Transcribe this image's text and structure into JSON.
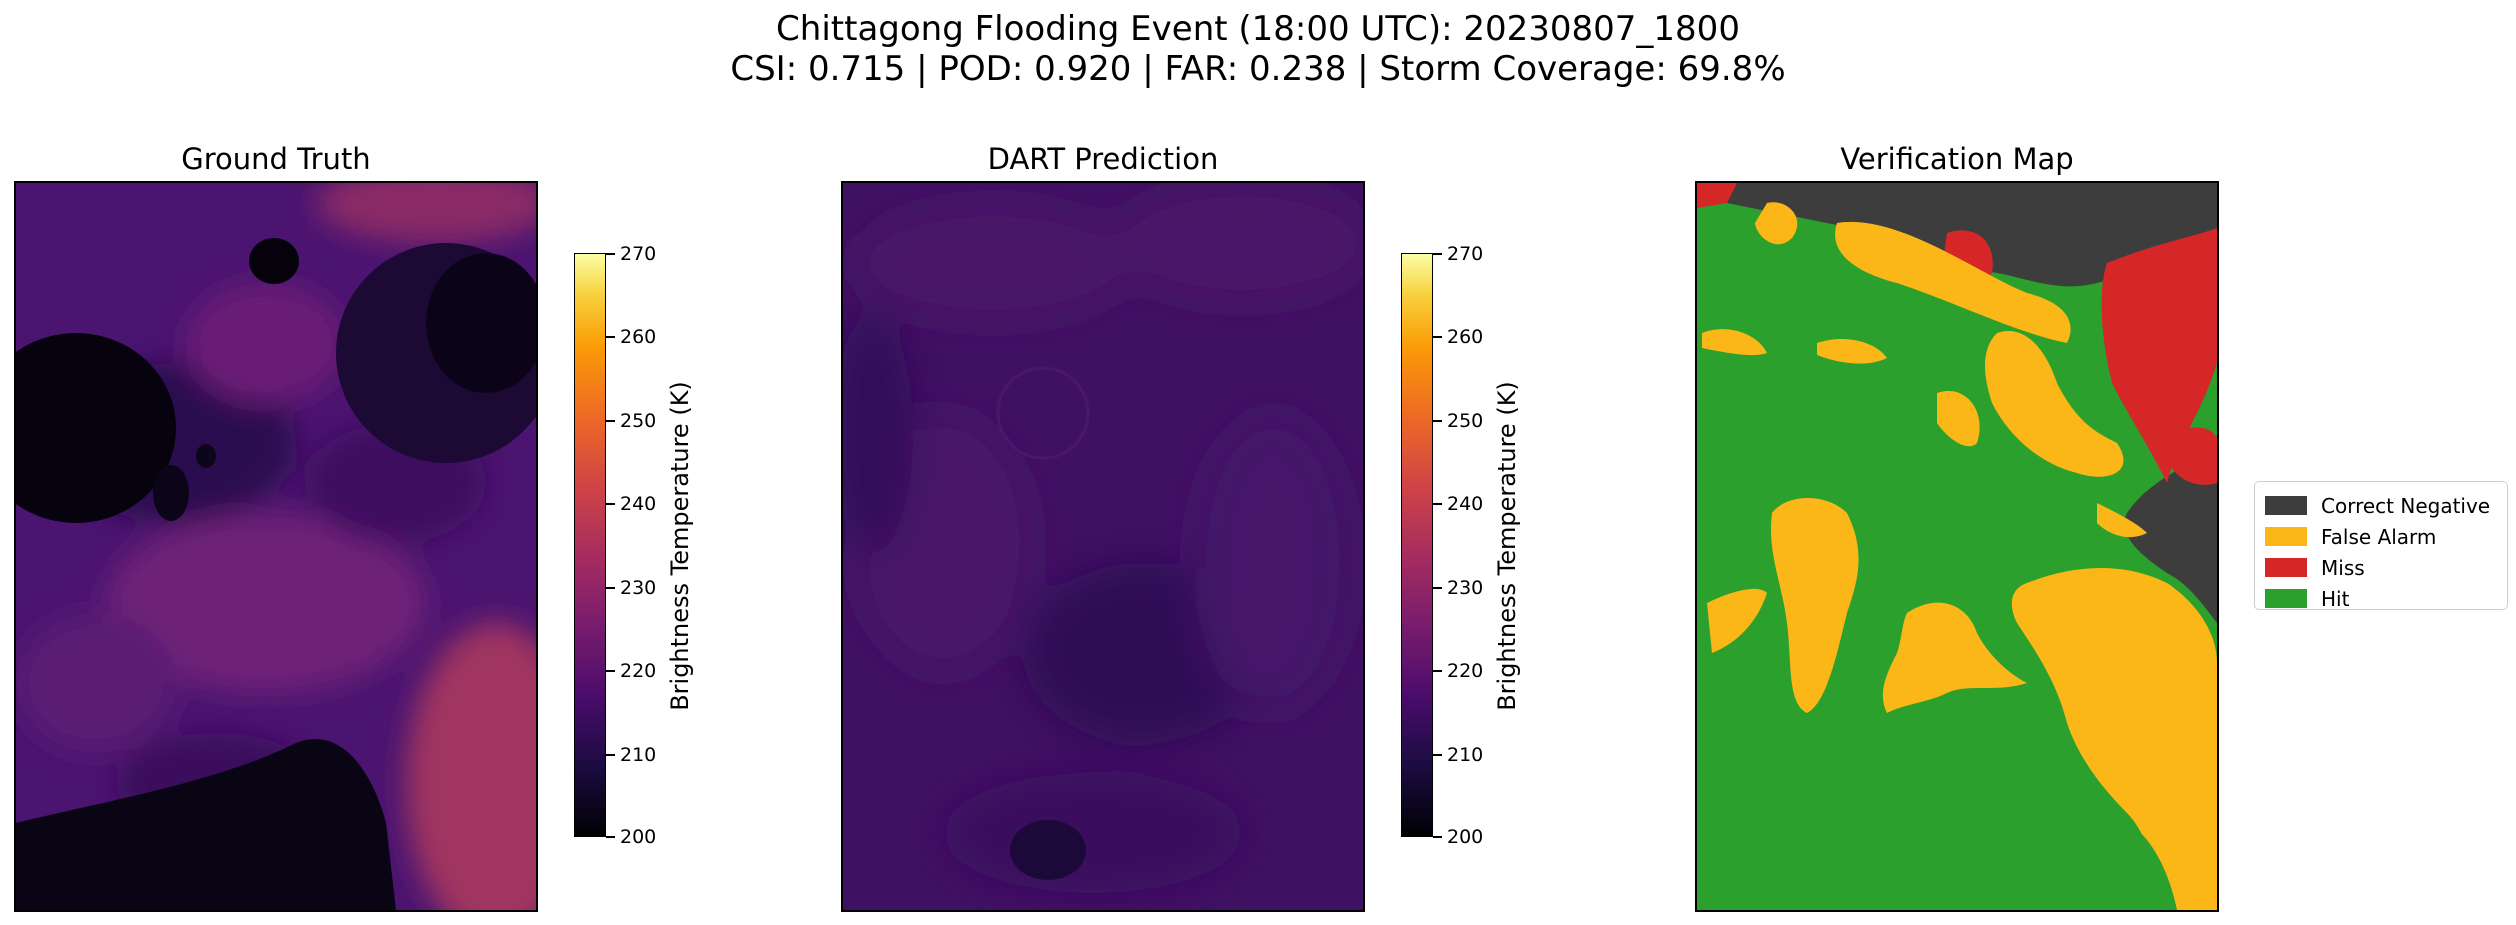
{
  "figure": {
    "title_line1": "Chittagong Flooding Event (18:00 UTC): 20230807_1800",
    "title_line2": "CSI: 0.715 | POD: 0.920 | FAR: 0.238 | Storm Coverage: 69.8%"
  },
  "chart_data": [
    {
      "type": "heatmap",
      "title": "Ground Truth",
      "colormap": "inferno",
      "colorbar": {
        "label": "Brightness Temperature (K)",
        "range": [
          200,
          270
        ],
        "ticks": [
          "270",
          "260",
          "250",
          "240",
          "230",
          "220",
          "210",
          "200"
        ]
      },
      "grid": false
    },
    {
      "type": "heatmap",
      "title": "DART Prediction",
      "colormap": "inferno",
      "colorbar": {
        "label": "Brightness Temperature (K)",
        "range": [
          200,
          270
        ],
        "ticks": [
          "270",
          "260",
          "250",
          "240",
          "230",
          "220",
          "210",
          "200"
        ]
      },
      "grid": false
    },
    {
      "type": "heatmap",
      "title": "Verification Map",
      "legend": {
        "placement": "right",
        "entries": [
          {
            "label": "Correct Negative",
            "color": "#3d3d3d"
          },
          {
            "label": "False Alarm",
            "color": "#fbb618"
          },
          {
            "label": "Miss",
            "color": "#d62728"
          },
          {
            "label": "Hit",
            "color": "#2ca02c"
          }
        ]
      },
      "metrics": {
        "CSI": 0.715,
        "POD": 0.92,
        "FAR": 0.238,
        "storm_coverage_percent": 69.8
      },
      "grid": false
    }
  ]
}
